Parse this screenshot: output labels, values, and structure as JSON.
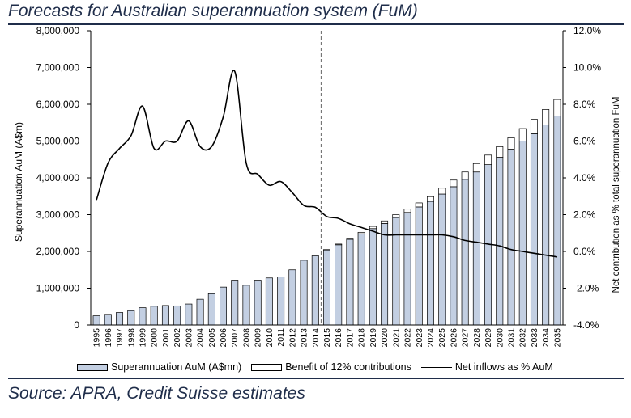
{
  "title": "Forecasts for Australian superannuation system (FuM)",
  "source": "Source: APRA, Credit Suisse estimates",
  "colors": {
    "title": "#1f2d4a",
    "bar_fill": "#c3cfe2",
    "benefit_fill": "#ffffff",
    "line": "#000000"
  },
  "legend": {
    "series_a": "Superannuation AuM (A$mn)",
    "series_b": "Benefit of 12% contributions",
    "series_c": "Net inflows as % AuM"
  },
  "chart_data": {
    "type": "bar",
    "xlabel": "",
    "ylabel": "Superannuation AuM (A$m)",
    "y2label": "Net contribution as % total superannuation FuM",
    "ylim": [
      0,
      8000000
    ],
    "y2lim": [
      -4.0,
      12.0
    ],
    "y_ticks": [
      "0",
      "1,000,000",
      "2,000,000",
      "3,000,000",
      "4,000,000",
      "5,000,000",
      "6,000,000",
      "7,000,000",
      "8,000,000"
    ],
    "y2_ticks": [
      "-4.0%",
      "-2.0%",
      "0.0%",
      "2.0%",
      "4.0%",
      "6.0%",
      "8.0%",
      "10.0%",
      "12.0%"
    ],
    "grid": false,
    "legend_position": "bottom",
    "forecast_divider_after": "2014",
    "categories": [
      "1995",
      "1996",
      "1997",
      "1998",
      "1999",
      "2000",
      "2001",
      "2002",
      "2003",
      "2004",
      "2005",
      "2006",
      "2007",
      "2008",
      "2009",
      "2010",
      "2011",
      "2012",
      "2013",
      "2014",
      "2015",
      "2016",
      "2017",
      "2018",
      "2019",
      "2020",
      "2021",
      "2022",
      "2023",
      "2024",
      "2025",
      "2026",
      "2027",
      "2028",
      "2029",
      "2030",
      "2031",
      "2032",
      "2033",
      "2034",
      "2035"
    ],
    "series": [
      {
        "name": "Superannuation AuM (A$mn)",
        "type": "bar",
        "axis": "left",
        "values": [
          250000,
          290000,
          340000,
          390000,
          470000,
          510000,
          530000,
          520000,
          570000,
          700000,
          850000,
          1030000,
          1220000,
          1080000,
          1220000,
          1280000,
          1310000,
          1500000,
          1760000,
          1880000,
          2040000,
          2180000,
          2330000,
          2480000,
          2620000,
          2760000,
          2920000,
          3060000,
          3210000,
          3360000,
          3560000,
          3760000,
          3960000,
          4160000,
          4360000,
          4560000,
          4780000,
          5000000,
          5200000,
          5440000,
          5680000
        ]
      },
      {
        "name": "Benefit of 12% contributions",
        "type": "stacked-bar",
        "axis": "left",
        "values": [
          0,
          0,
          0,
          0,
          0,
          0,
          0,
          0,
          0,
          0,
          0,
          0,
          0,
          0,
          0,
          0,
          0,
          0,
          0,
          0,
          10000,
          20000,
          30000,
          40000,
          60000,
          70000,
          80000,
          90000,
          110000,
          130000,
          160000,
          180000,
          200000,
          230000,
          260000,
          290000,
          310000,
          340000,
          390000,
          420000,
          450000
        ]
      },
      {
        "name": "Net inflows as % AuM",
        "type": "line",
        "axis": "right",
        "values": [
          2.8,
          4.8,
          5.6,
          6.3,
          7.9,
          5.6,
          6.0,
          6.0,
          7.1,
          5.7,
          5.7,
          7.3,
          9.8,
          4.8,
          4.2,
          3.6,
          3.8,
          3.2,
          2.5,
          2.4,
          1.9,
          1.8,
          1.5,
          1.3,
          1.1,
          0.9,
          0.9,
          0.9,
          0.9,
          0.9,
          0.9,
          0.8,
          0.6,
          0.5,
          0.4,
          0.3,
          0.1,
          0.0,
          -0.1,
          -0.2,
          -0.3
        ]
      }
    ]
  }
}
